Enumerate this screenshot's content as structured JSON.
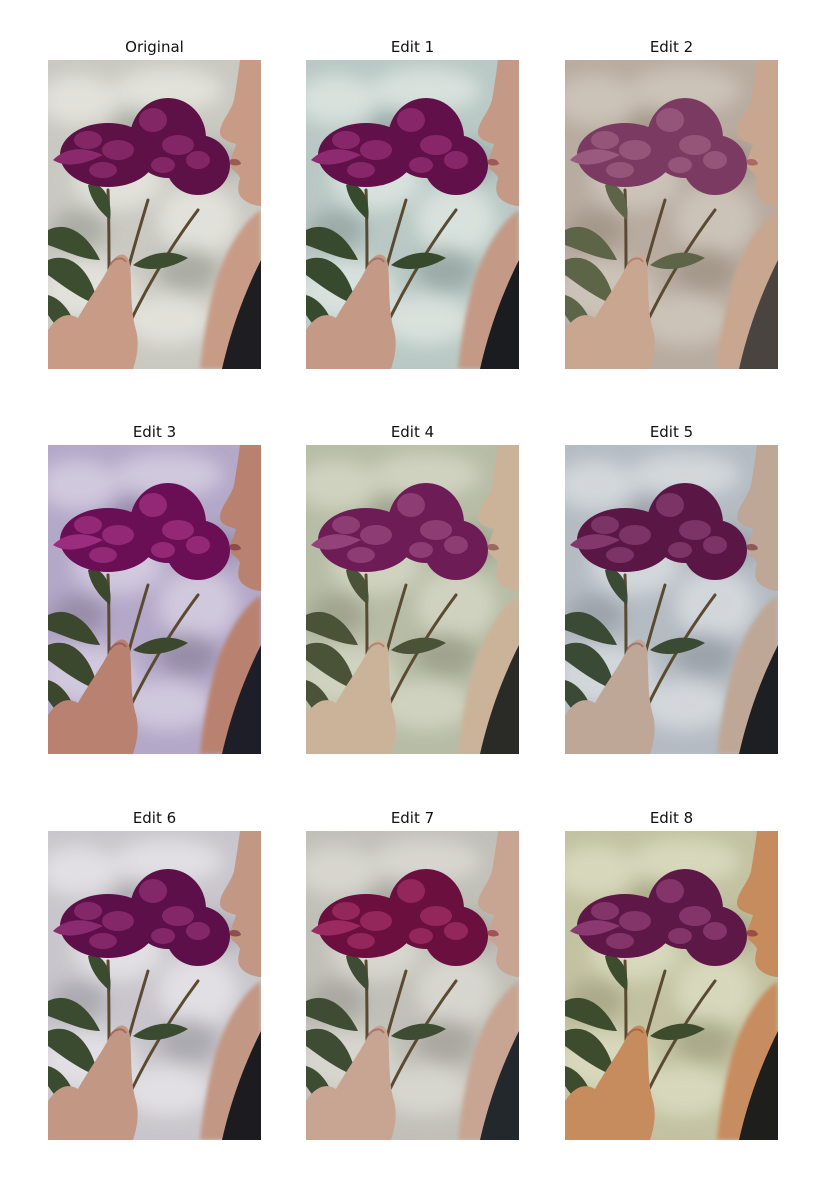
{
  "panels": [
    {
      "title": "Original",
      "bg": "#c9c9c2",
      "cloud": "#e4e4de",
      "shadow": "#a8aaa2",
      "flower": "#5e1146",
      "flower_hi": "#8a2a6c",
      "skin": "#c89b86",
      "lip": "#9a5a57",
      "leaf": "#3d4e30",
      "dress": "#1e1e22",
      "tint": "none"
    },
    {
      "title": "Edit 1",
      "bg": "#b9c8c4",
      "cloud": "#dbe4e0",
      "shadow": "#98a8a4",
      "flower": "#621049",
      "flower_hi": "#8e2b70",
      "skin": "#c49a86",
      "lip": "#9a5a57",
      "leaf": "#374a2e",
      "dress": "#1a1c1f",
      "tint": "none"
    },
    {
      "title": "Edit 2",
      "bg": "#b8aca0",
      "cloud": "#cfc6bb",
      "shadow": "#a29688",
      "flower": "#7a3a62",
      "flower_hi": "#9a5a80",
      "skin": "#c9a68f",
      "lip": "#a86a62",
      "leaf": "#5d6448",
      "dress": "#4a4440",
      "tint": "none"
    },
    {
      "title": "Edit 3",
      "bg": "#b4a8c8",
      "cloud": "#d4cce0",
      "shadow": "#958ba6",
      "flower": "#6a0f55",
      "flower_hi": "#9a2d7e",
      "skin": "#b98270",
      "lip": "#8e4a4c",
      "leaf": "#3c482e",
      "dress": "#1e1e28",
      "tint": "none"
    },
    {
      "title": "Edit 4",
      "bg": "#b7bca6",
      "cloud": "#d2d5c2",
      "shadow": "#9ea28c",
      "flower": "#6d1c55",
      "flower_hi": "#93427a",
      "skin": "#cbb39a",
      "lip": "#9c6860",
      "leaf": "#4a5238",
      "dress": "#2a2a26",
      "tint": "none"
    },
    {
      "title": "Edit 5",
      "bg": "#b4bbc2",
      "cloud": "#d6dade",
      "shadow": "#9aa1a8",
      "flower": "#5a1746",
      "flower_hi": "#83386b",
      "skin": "#bfa798",
      "lip": "#8c5a58",
      "leaf": "#3b4a34",
      "dress": "#1d1f22",
      "tint": "none"
    },
    {
      "title": "Edit 6",
      "bg": "#c8c6cc",
      "cloud": "#e4e2e6",
      "shadow": "#a9a7ae",
      "flower": "#5c0f48",
      "flower_hi": "#8a2b70",
      "skin": "#c29784",
      "lip": "#8f4e4e",
      "leaf": "#3b4b2f",
      "dress": "#1c1c20",
      "tint": "none"
    },
    {
      "title": "Edit 7",
      "bg": "#c1c0b8",
      "cloud": "#d9d8d1",
      "shadow": "#a7a69e",
      "flower": "#6a0f3e",
      "flower_hi": "#9a2a60",
      "skin": "#c8a593",
      "lip": "#a0545a",
      "leaf": "#3e4c33",
      "dress": "#23282c",
      "tint": "none"
    },
    {
      "title": "Edit 8",
      "bg": "#c2c2a2",
      "cloud": "#dadabf",
      "shadow": "#a8a888",
      "flower": "#5e1848",
      "flower_hi": "#8a3a70",
      "skin": "#c78c5e",
      "lip": "#9a4e40",
      "leaf": "#3d4c2c",
      "dress": "#1e1e1c",
      "tint": "none"
    }
  ]
}
